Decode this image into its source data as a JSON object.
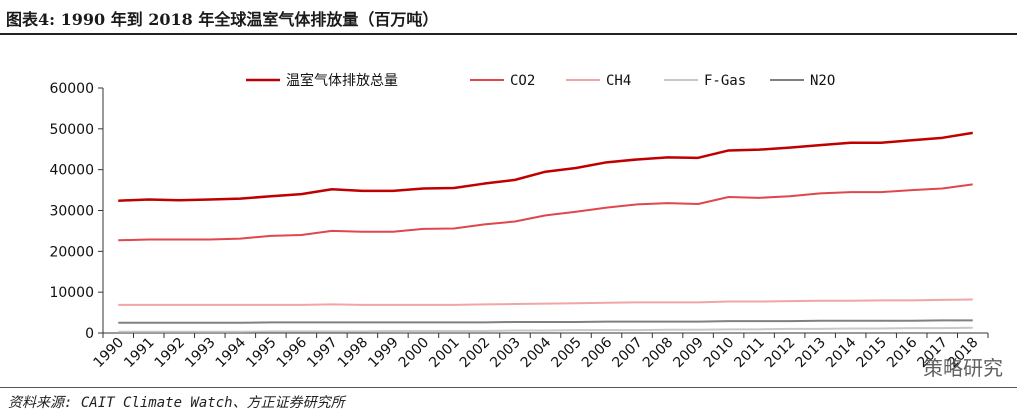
{
  "figure": {
    "title": "图表4:   1990 年到 2018 年全球温室气体排放量（百万吨）",
    "source": "资料来源: CAIT Climate Watch、方正证券研究所",
    "watermark": "策略研究"
  },
  "chart_data": {
    "type": "line",
    "title": "",
    "xlabel": "",
    "ylabel": "",
    "ylim": [
      0,
      60000
    ],
    "yticks": [
      0,
      10000,
      20000,
      30000,
      40000,
      50000,
      60000
    ],
    "grid": false,
    "legend_position": "top",
    "x": [
      "1990",
      "1991",
      "1992",
      "1993",
      "1994",
      "1995",
      "1996",
      "1997",
      "1998",
      "1999",
      "2000",
      "2001",
      "2002",
      "2003",
      "2004",
      "2005",
      "2006",
      "2007",
      "2008",
      "2009",
      "2010",
      "2011",
      "2012",
      "2013",
      "2014",
      "2015",
      "2016",
      "2017",
      "2018"
    ],
    "series": [
      {
        "name": "温室气体排放总量",
        "color": "#c00000",
        "values": [
          32400,
          32700,
          32500,
          32700,
          32900,
          33500,
          34000,
          35200,
          34800,
          34800,
          35400,
          35500,
          36600,
          37500,
          39500,
          40400,
          41800,
          42500,
          43000,
          42900,
          44700,
          44900,
          45400,
          46000,
          46600,
          46600,
          47200,
          47800,
          49000
        ]
      },
      {
        "name": "CO2",
        "color": "#e0474c",
        "values": [
          22700,
          22900,
          22900,
          22900,
          23100,
          23800,
          24000,
          25000,
          24800,
          24800,
          25500,
          25600,
          26600,
          27300,
          28800,
          29700,
          30700,
          31500,
          31800,
          31600,
          33300,
          33100,
          33500,
          34200,
          34500,
          34500,
          35000,
          35400,
          36400
        ]
      },
      {
        "name": "CH4",
        "color": "#f2a5a5",
        "values": [
          6900,
          6900,
          6900,
          6900,
          6900,
          6900,
          6900,
          7000,
          6900,
          6900,
          6900,
          6900,
          7000,
          7100,
          7200,
          7300,
          7400,
          7500,
          7500,
          7500,
          7700,
          7700,
          7800,
          7900,
          7900,
          8000,
          8000,
          8100,
          8200
        ]
      },
      {
        "name": "F-Gas",
        "color": "#c8c8c8",
        "values": [
          300,
          300,
          300,
          300,
          300,
          400,
          400,
          400,
          400,
          500,
          500,
          500,
          500,
          600,
          600,
          700,
          700,
          700,
          800,
          800,
          900,
          900,
          1000,
          1000,
          1100,
          1100,
          1200,
          1200,
          1300
        ]
      },
      {
        "name": "N2O",
        "color": "#808080",
        "values": [
          2500,
          2500,
          2500,
          2500,
          2500,
          2600,
          2600,
          2600,
          2600,
          2600,
          2600,
          2600,
          2600,
          2700,
          2700,
          2700,
          2800,
          2800,
          2800,
          2800,
          2900,
          2900,
          2900,
          3000,
          3000,
          3000,
          3000,
          3100,
          3100
        ]
      }
    ]
  }
}
